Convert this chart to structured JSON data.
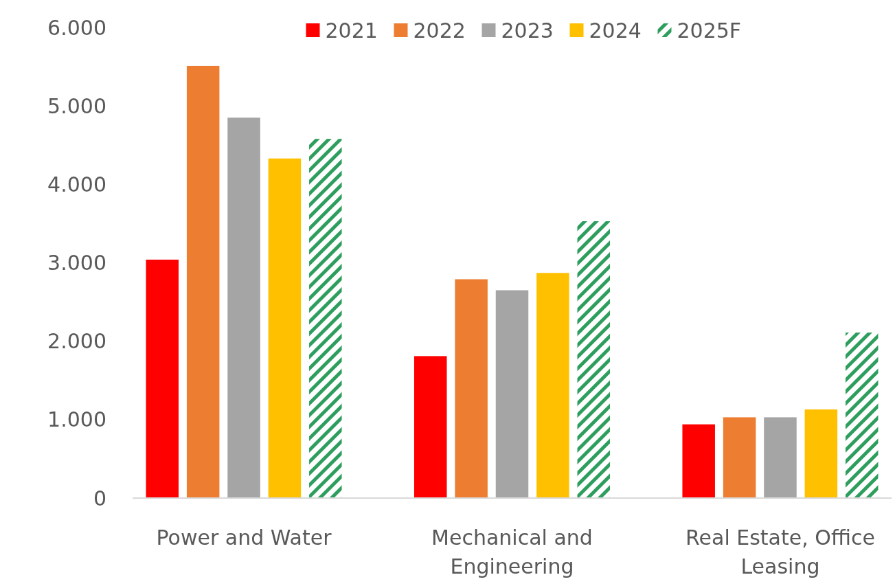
{
  "chart_data": {
    "type": "bar",
    "categories": [
      "Power and Water",
      "Mechanical and Engineering",
      "Real Estate, Office Leasing"
    ],
    "series": [
      {
        "name": "2021",
        "color": "#ff0000",
        "values": [
          3040,
          1810,
          940
        ]
      },
      {
        "name": "2022",
        "color": "#ed7d31",
        "values": [
          5510,
          2790,
          1030
        ]
      },
      {
        "name": "2023",
        "color": "#a5a5a5",
        "values": [
          4850,
          2650,
          1030
        ]
      },
      {
        "name": "2024",
        "color": "#ffc000",
        "values": [
          4330,
          2870,
          1130
        ]
      },
      {
        "name": "2025F",
        "color": "#2e9e5e",
        "values": [
          4580,
          3530,
          2110
        ],
        "line_style": "dashed"
      }
    ],
    "ylim": [
      0,
      6000
    ],
    "yticks": [
      {
        "value": 0,
        "label": "0"
      },
      {
        "value": 1000,
        "label": "1.000"
      },
      {
        "value": 2000,
        "label": "2.000"
      },
      {
        "value": 3000,
        "label": "3.000"
      },
      {
        "value": 4000,
        "label": "4.000"
      },
      {
        "value": 5000,
        "label": "5.000"
      },
      {
        "value": 6000,
        "label": "6.000"
      }
    ],
    "grid": false,
    "legend": "top"
  }
}
